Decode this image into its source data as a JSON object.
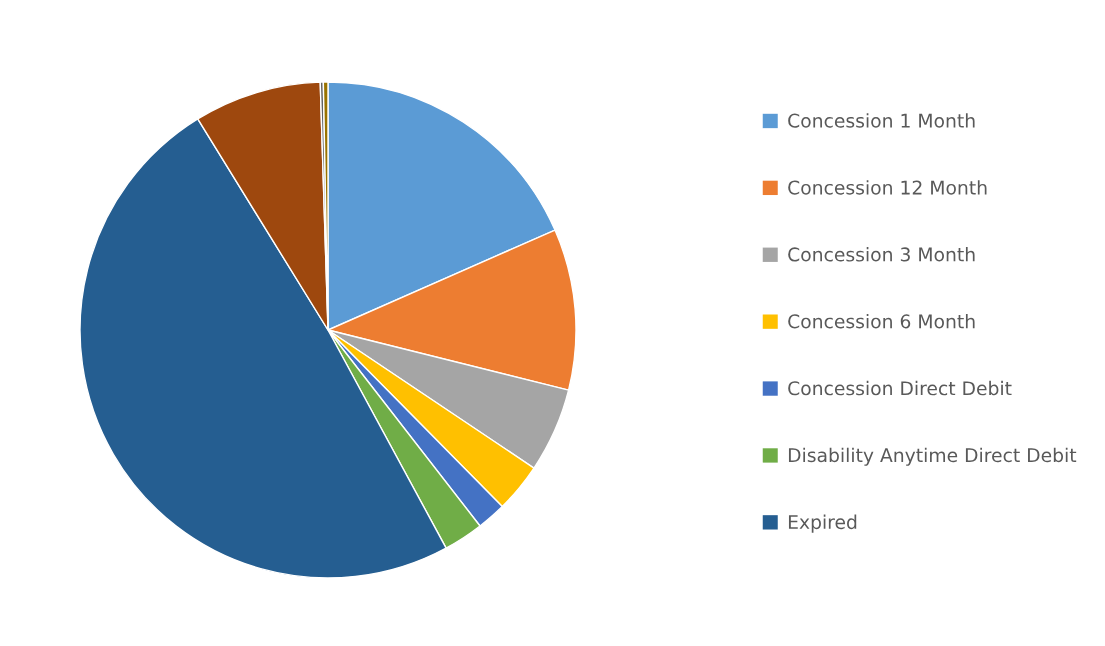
{
  "chart_data": {
    "type": "pie",
    "categories": [
      "Concession 1 Month",
      "Concession 12 Month",
      "Concession 3 Month",
      "Concession 6 Month",
      "Concession Direct Debit",
      "Disability Anytime Direct Debit",
      "Expired",
      null,
      null,
      null
    ],
    "values": [
      18.4,
      10.5,
      5.5,
      3.2,
      1.9,
      2.6,
      49.1,
      8.3,
      0.2,
      0.3
    ],
    "colors": [
      "#5b9bd5",
      "#ed7d31",
      "#a5a5a5",
      "#ffc000",
      "#4472c4",
      "#70ad47",
      "#255e91",
      "#9e480e",
      "#636363",
      "#997300"
    ],
    "legend": "right"
  }
}
